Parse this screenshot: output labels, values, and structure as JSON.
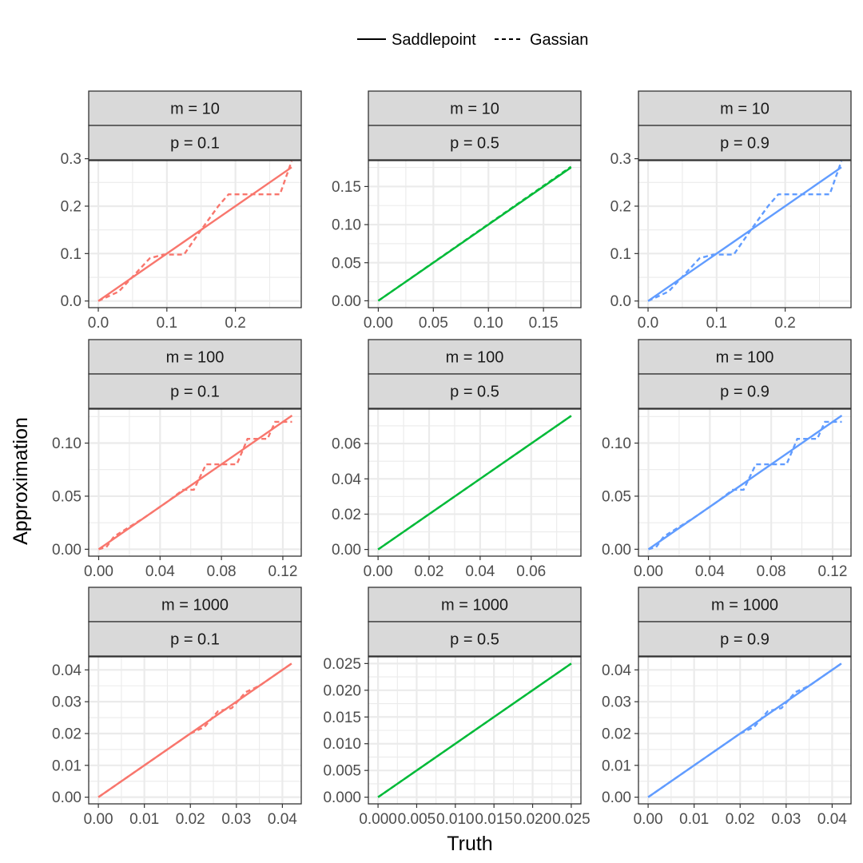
{
  "legend": {
    "entries": [
      {
        "label": "Saddlepoint",
        "dash": "solid"
      },
      {
        "label": "Gassian",
        "dash": "dashed"
      }
    ],
    "placement": "top"
  },
  "xlabel": "Truth",
  "ylabel": "Approximation",
  "colors": {
    "p = 0.1": "#F8766D",
    "p = 0.5": "#00BA38",
    "p = 0.9": "#619CFF"
  },
  "chart_data": [
    {
      "type": "line",
      "facet_row": "m = 10",
      "facet_col": "p = 0.1",
      "xlim": [
        -0.014,
        0.296
      ],
      "ylim": [
        -0.014,
        0.296
      ],
      "xticks": [
        "0.0",
        "0.1",
        "0.2"
      ],
      "yticks": [
        "0.0",
        "0.1",
        "0.2",
        "0.3"
      ],
      "xtick_values": [
        0,
        0.1,
        0.2
      ],
      "ytick_values": [
        0,
        0.1,
        0.2,
        0.3
      ],
      "series": [
        {
          "name": "Saddlepoint",
          "x": [
            0,
            0.282
          ],
          "y": [
            0,
            0.282
          ]
        },
        {
          "name": "Gassian",
          "x": [
            0,
            0.03,
            0.075,
            0.095,
            0.125,
            0.15,
            0.175,
            0.19,
            0.265,
            0.282
          ],
          "y": [
            0,
            0.02,
            0.09,
            0.098,
            0.098,
            0.15,
            0.2,
            0.225,
            0.225,
            0.295
          ]
        }
      ]
    },
    {
      "type": "line",
      "facet_row": "m = 10",
      "facet_col": "p = 0.5",
      "xlim": [
        -0.009,
        0.184
      ],
      "ylim": [
        -0.009,
        0.184
      ],
      "xticks": [
        "0.00",
        "0.05",
        "0.10",
        "0.15"
      ],
      "yticks": [
        "0.00",
        "0.05",
        "0.10",
        "0.15"
      ],
      "xtick_values": [
        0,
        0.05,
        0.1,
        0.15
      ],
      "ytick_values": [
        0,
        0.05,
        0.1,
        0.15
      ],
      "series": [
        {
          "name": "Saddlepoint",
          "x": [
            0,
            0.175
          ],
          "y": [
            0,
            0.175
          ]
        },
        {
          "name": "Gassian",
          "x": [
            0,
            0.175
          ],
          "y": [
            0,
            0.176
          ]
        }
      ]
    },
    {
      "type": "line",
      "facet_row": "m = 10",
      "facet_col": "p = 0.9",
      "xlim": [
        -0.014,
        0.296
      ],
      "ylim": [
        -0.014,
        0.296
      ],
      "xticks": [
        "0.0",
        "0.1",
        "0.2"
      ],
      "yticks": [
        "0.0",
        "0.1",
        "0.2",
        "0.3"
      ],
      "xtick_values": [
        0,
        0.1,
        0.2
      ],
      "ytick_values": [
        0,
        0.1,
        0.2,
        0.3
      ],
      "series": [
        {
          "name": "Saddlepoint",
          "x": [
            0,
            0.282
          ],
          "y": [
            0,
            0.282
          ]
        },
        {
          "name": "Gassian",
          "x": [
            0,
            0.03,
            0.075,
            0.095,
            0.125,
            0.15,
            0.175,
            0.19,
            0.265,
            0.282
          ],
          "y": [
            0,
            0.02,
            0.09,
            0.098,
            0.098,
            0.15,
            0.2,
            0.225,
            0.225,
            0.295
          ]
        }
      ]
    },
    {
      "type": "line",
      "facet_row": "m = 100",
      "facet_col": "p = 0.1",
      "xlim": [
        -0.0065,
        0.132
      ],
      "ylim": [
        -0.0065,
        0.132
      ],
      "xticks": [
        "0.00",
        "0.04",
        "0.08",
        "0.12"
      ],
      "yticks": [
        "0.00",
        "0.05",
        "0.10"
      ],
      "xtick_values": [
        0,
        0.04,
        0.08,
        0.12
      ],
      "ytick_values": [
        0,
        0.05,
        0.1
      ],
      "series": [
        {
          "name": "Saddlepoint",
          "x": [
            0,
            0.126
          ],
          "y": [
            0,
            0.126
          ]
        },
        {
          "name": "Gassian",
          "x": [
            0,
            0.005,
            0.01,
            0.03,
            0.045,
            0.055,
            0.062,
            0.07,
            0.085,
            0.09,
            0.097,
            0.11,
            0.115,
            0.126
          ],
          "y": [
            0,
            0.002,
            0.012,
            0.03,
            0.045,
            0.056,
            0.056,
            0.08,
            0.08,
            0.08,
            0.104,
            0.104,
            0.12,
            0.12
          ]
        }
      ]
    },
    {
      "type": "line",
      "facet_row": "m = 100",
      "facet_col": "p = 0.5",
      "xlim": [
        -0.0038,
        0.0795
      ],
      "ylim": [
        -0.0038,
        0.0795
      ],
      "xticks": [
        "0.00",
        "0.02",
        "0.04",
        "0.06"
      ],
      "yticks": [
        "0.00",
        "0.02",
        "0.04",
        "0.06"
      ],
      "xtick_values": [
        0,
        0.02,
        0.04,
        0.06
      ],
      "ytick_values": [
        0,
        0.02,
        0.04,
        0.06
      ],
      "series": [
        {
          "name": "Saddlepoint",
          "x": [
            0,
            0.0757
          ],
          "y": [
            0,
            0.0757
          ]
        },
        {
          "name": "Gassian",
          "x": [
            0,
            0.0757
          ],
          "y": [
            0,
            0.0757
          ]
        }
      ]
    },
    {
      "type": "line",
      "facet_row": "m = 100",
      "facet_col": "p = 0.9",
      "xlim": [
        -0.0065,
        0.132
      ],
      "ylim": [
        -0.0065,
        0.132
      ],
      "xticks": [
        "0.00",
        "0.04",
        "0.08",
        "0.12"
      ],
      "yticks": [
        "0.00",
        "0.05",
        "0.10"
      ],
      "xtick_values": [
        0,
        0.04,
        0.08,
        0.12
      ],
      "ytick_values": [
        0,
        0.05,
        0.1
      ],
      "series": [
        {
          "name": "Saddlepoint",
          "x": [
            0,
            0.126
          ],
          "y": [
            0,
            0.126
          ]
        },
        {
          "name": "Gassian",
          "x": [
            0,
            0.005,
            0.01,
            0.03,
            0.045,
            0.055,
            0.062,
            0.07,
            0.085,
            0.09,
            0.097,
            0.11,
            0.115,
            0.126
          ],
          "y": [
            0,
            0.002,
            0.012,
            0.03,
            0.045,
            0.056,
            0.056,
            0.08,
            0.08,
            0.08,
            0.104,
            0.104,
            0.12,
            0.12
          ]
        }
      ]
    },
    {
      "type": "line",
      "facet_row": "m = 1000",
      "facet_col": "p = 0.1",
      "xlim": [
        -0.0021,
        0.0441
      ],
      "ylim": [
        -0.0021,
        0.0441
      ],
      "xticks": [
        "0.00",
        "0.01",
        "0.02",
        "0.03",
        "0.04"
      ],
      "yticks": [
        "0.00",
        "0.01",
        "0.02",
        "0.03",
        "0.04"
      ],
      "xtick_values": [
        0,
        0.01,
        0.02,
        0.03,
        0.04
      ],
      "ytick_values": [
        0,
        0.01,
        0.02,
        0.03,
        0.04
      ],
      "series": [
        {
          "name": "Saddlepoint",
          "x": [
            0,
            0.042
          ],
          "y": [
            0,
            0.042
          ]
        },
        {
          "name": "Gassian",
          "x": [
            0,
            0.02,
            0.023,
            0.026,
            0.029,
            0.032,
            0.035,
            0.038,
            0.042
          ],
          "y": [
            0,
            0.02,
            0.022,
            0.027,
            0.028,
            0.033,
            0.035,
            0.038,
            0.042
          ]
        }
      ]
    },
    {
      "type": "line",
      "facet_row": "m = 1000",
      "facet_col": "p = 0.5",
      "xlim": [
        -0.00125,
        0.02625
      ],
      "ylim": [
        -0.00125,
        0.02625
      ],
      "xticks": [
        "0.000",
        "0.005",
        "0.010",
        "0.015",
        "0.020",
        "0.025"
      ],
      "yticks": [
        "0.000",
        "0.005",
        "0.010",
        "0.015",
        "0.020",
        "0.025"
      ],
      "xtick_values": [
        0,
        0.005,
        0.01,
        0.015,
        0.02,
        0.025
      ],
      "ytick_values": [
        0,
        0.005,
        0.01,
        0.015,
        0.02,
        0.025
      ],
      "series": [
        {
          "name": "Saddlepoint",
          "x": [
            0,
            0.025
          ],
          "y": [
            0,
            0.025
          ]
        },
        {
          "name": "Gassian",
          "x": [
            0,
            0.025
          ],
          "y": [
            0,
            0.025
          ]
        }
      ]
    },
    {
      "type": "line",
      "facet_row": "m = 1000",
      "facet_col": "p = 0.9",
      "xlim": [
        -0.0021,
        0.0441
      ],
      "ylim": [
        -0.0021,
        0.0441
      ],
      "xticks": [
        "0.00",
        "0.01",
        "0.02",
        "0.03",
        "0.04"
      ],
      "yticks": [
        "0.00",
        "0.01",
        "0.02",
        "0.03",
        "0.04"
      ],
      "xtick_values": [
        0,
        0.01,
        0.02,
        0.03,
        0.04
      ],
      "ytick_values": [
        0,
        0.01,
        0.02,
        0.03,
        0.04
      ],
      "series": [
        {
          "name": "Saddlepoint",
          "x": [
            0,
            0.042
          ],
          "y": [
            0,
            0.042
          ]
        },
        {
          "name": "Gassian",
          "x": [
            0,
            0.02,
            0.023,
            0.026,
            0.029,
            0.032,
            0.035,
            0.038,
            0.042
          ],
          "y": [
            0,
            0.02,
            0.022,
            0.027,
            0.028,
            0.033,
            0.035,
            0.038,
            0.042
          ]
        }
      ]
    }
  ]
}
